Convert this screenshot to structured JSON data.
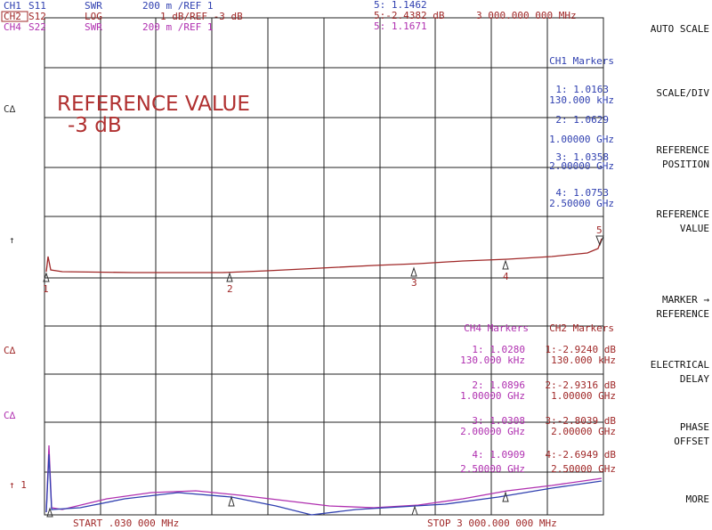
{
  "header": {
    "channels": [
      {
        "ch": "CH1",
        "param": "S11",
        "format": "SWR",
        "scale": "200 m /REF 1"
      },
      {
        "ch": "CH2",
        "param": "S12",
        "format": "LOG",
        "scale": "1 dB/REF -3 dB"
      },
      {
        "ch": "CH4",
        "param": "S22",
        "format": "SWR",
        "scale": "200 m /REF 1"
      }
    ],
    "readout": [
      "5: 1.1462",
      "5:-2.4382 dB",
      "3 000.000 000 MHz",
      "5: 1.1671"
    ]
  },
  "softkeys": [
    "AUTO SCALE",
    "SCALE/DIV",
    "REFERENCE POSITION",
    "REFERENCE VALUE",
    "MARKER → REFERENCE",
    "ELECTRICAL DELAY",
    "PHASE OFFSET",
    "MORE"
  ],
  "side_labels": [
    "C∆",
    "↑",
    "C∆",
    "C∆",
    "↑ 1"
  ],
  "banner": [
    "REFERENCE VALUE",
    "-3 dB"
  ],
  "ch1_markers": {
    "title": "CH1 Markers",
    "rows": [
      [
        "1: 1.0163",
        "130.000 kHz"
      ],
      [
        "2: 1.0629",
        "1.00000 GHz"
      ],
      [
        "3: 1.0358",
        "2.00000 GHz"
      ],
      [
        "4: 1.0753",
        "2.50000 GHz"
      ]
    ]
  },
  "ch4_ch2_markers": {
    "titles": [
      "CH4 Markers",
      "CH2 Markers"
    ],
    "rows": [
      [
        "1: 1.0280",
        "130.000 kHz",
        "1:-2.9240 dB",
        "130.000 kHz"
      ],
      [
        "2: 1.0896",
        "1.00000 GHz",
        "2:-2.9316 dB",
        "1.00000 GHz"
      ],
      [
        "3: 1.0308",
        "2.00000 GHz",
        "3:-2.8039 dB",
        "2.00000 GHz"
      ],
      [
        "4: 1.0909",
        "2.50000 GHz",
        "4:-2.6949 dB",
        "2.50000 GHz"
      ]
    ]
  },
  "marker_numbers": [
    "1",
    "2",
    "3",
    "4",
    "5"
  ],
  "footer": {
    "start": "START .030 000 MHz",
    "stop": "STOP 3 000.000 000 MHz"
  }
}
